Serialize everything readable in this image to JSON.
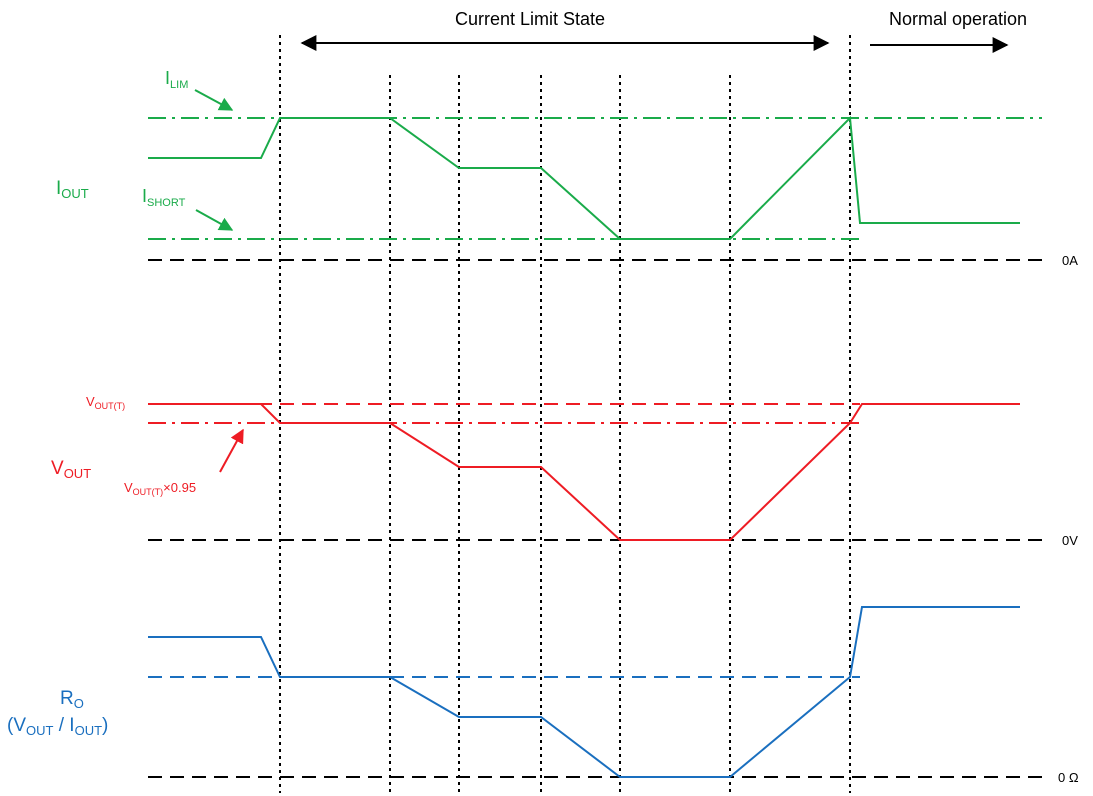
{
  "header": {
    "current_limit_state": "Current Limit State",
    "normal_operation": "Normal operation"
  },
  "current_panel": {
    "label_main": "I",
    "label_sub": "OUT",
    "ilim_main": "I",
    "ilim_sub": "LIM",
    "ishort_main": "I",
    "ishort_sub": "SHORT",
    "zero_label": "0A",
    "color": "#1aab4a"
  },
  "voltage_panel": {
    "label_main": "V",
    "label_sub": "OUT",
    "vout_t_main": "V",
    "vout_t_sub": "OUT(T)",
    "vout_095_main": "V",
    "vout_095_sub": "OUT(T)",
    "vout_095_suffix": "×0.95",
    "zero_label": "0V",
    "color": "#ee1c24"
  },
  "resistance_panel": {
    "label_main": "R",
    "label_sub": "O",
    "formula_open": "(V",
    "formula_sub1": "OUT",
    "formula_mid": " / I",
    "formula_sub2": "OUT",
    "formula_close": ")",
    "zero_label": "0 Ω",
    "color": "#1a6fbf"
  },
  "colors": {
    "reference_lines": "#000000",
    "markers": "#000000"
  }
}
